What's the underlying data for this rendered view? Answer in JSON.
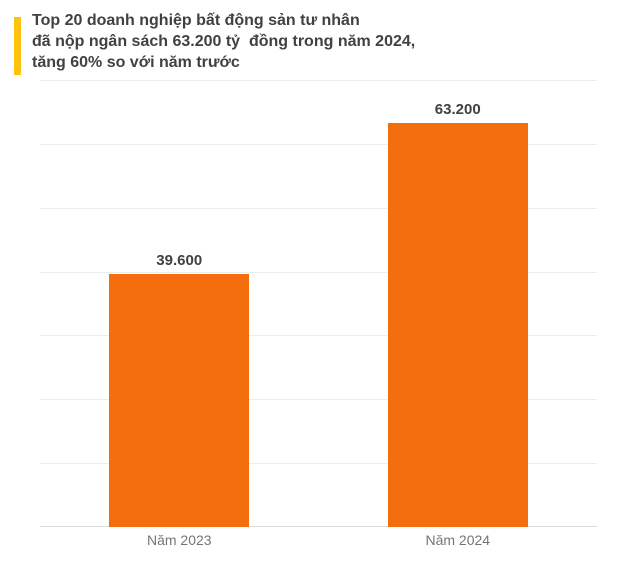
{
  "header": {
    "title_lines": [
      "Top 20 doanh nghiệp bất động sản tư nhân",
      "đã nộp ngân sách 63.200 tỷ  đồng trong năm 2024,",
      "tăng 60% so với năm trước"
    ],
    "accent_color": "#FFC30B",
    "text_color": "#414141"
  },
  "chart_data": {
    "type": "bar",
    "title": "Top 20 doanh nghiệp bất động sản tư nhân đã nộp ngân sách 63.200 tỷ đồng trong năm 2024, tăng 60% so với năm trước",
    "categories": [
      "Năm 2023",
      "Năm 2024"
    ],
    "values": [
      39600,
      63200
    ],
    "value_labels": [
      "39.600",
      "63.200"
    ],
    "xlabel": "",
    "ylabel": "",
    "ylim": [
      0,
      70000
    ],
    "grid_step": 10000,
    "grid": true,
    "legend_position": "none",
    "bar_color": "#F56E0D",
    "gridline_color": "#ececec",
    "baseline_color": "#dcdcdc",
    "value_label_color": "#414141",
    "axis_label_color": "#757575",
    "background": "#ffffff"
  }
}
